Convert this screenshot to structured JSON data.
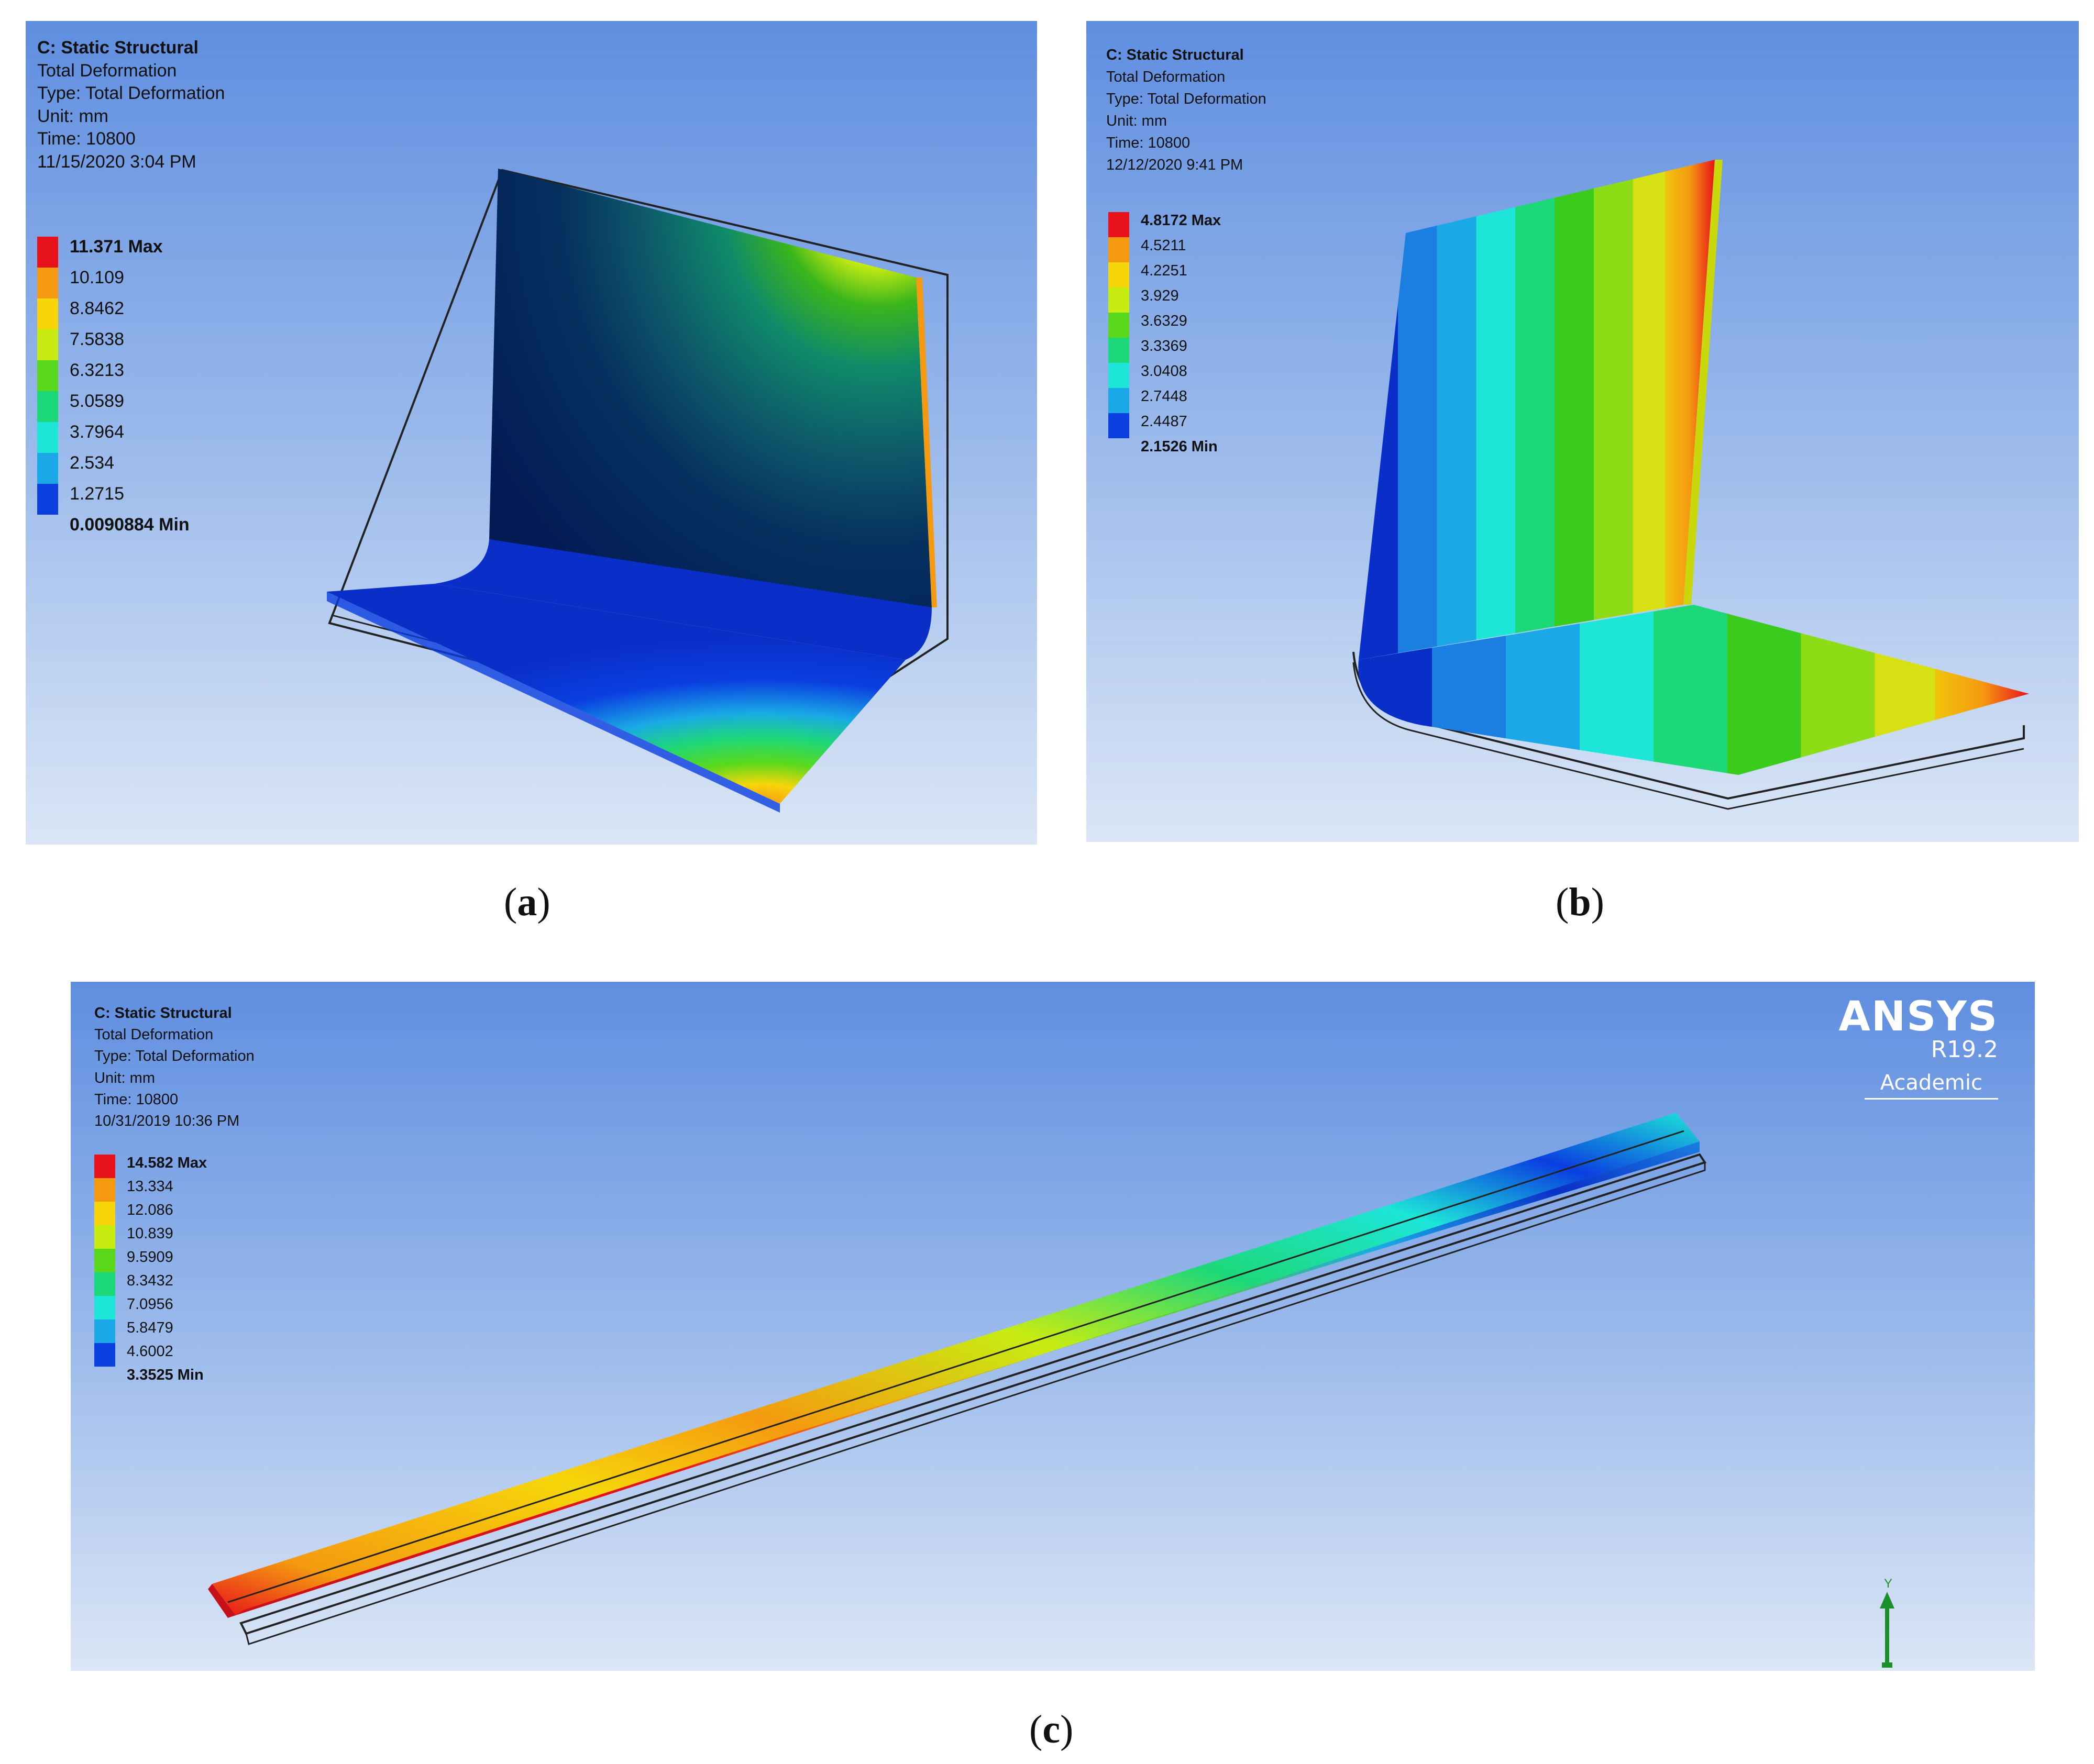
{
  "panels": [
    {
      "id": "a",
      "caption_label": "a",
      "info": [
        "C: Static Structural",
        "Total Deformation",
        "Type: Total Deformation",
        "Unit: mm",
        "Time: 10800",
        "11/15/2020 3:04 PM"
      ],
      "legend": [
        {
          "label": "11.371 Max",
          "color": "#e8121b"
        },
        {
          "label": "10.109",
          "color": "#f59a10"
        },
        {
          "label": "8.8462",
          "color": "#f6d60a"
        },
        {
          "label": "7.5838",
          "color": "#c8ec12"
        },
        {
          "label": "6.3213",
          "color": "#5ad91c"
        },
        {
          "label": "5.0589",
          "color": "#1dd879"
        },
        {
          "label": "3.7964",
          "color": "#1de6d8"
        },
        {
          "label": "2.534",
          "color": "#1aa9e6"
        },
        {
          "label": "1.2715",
          "color": "#0a3fe0"
        },
        {
          "label": "0.0090884 Min",
          "color": null
        }
      ]
    },
    {
      "id": "b",
      "caption_label": "b",
      "info": [
        "C: Static Structural",
        "Total Deformation",
        "Type: Total Deformation",
        "Unit: mm",
        "Time: 10800",
        "12/12/2020 9:41 PM"
      ],
      "legend": [
        {
          "label": "4.8172 Max",
          "color": "#e8121b"
        },
        {
          "label": "4.5211",
          "color": "#f59a10"
        },
        {
          "label": "4.2251",
          "color": "#f6d60a"
        },
        {
          "label": "3.929",
          "color": "#c8ec12"
        },
        {
          "label": "3.6329",
          "color": "#5ad91c"
        },
        {
          "label": "3.3369",
          "color": "#1dd879"
        },
        {
          "label": "3.0408",
          "color": "#1de6d8"
        },
        {
          "label": "2.7448",
          "color": "#1aa9e6"
        },
        {
          "label": "2.4487",
          "color": "#0a3fe0"
        },
        {
          "label": "2.1526 Min",
          "color": null
        }
      ]
    },
    {
      "id": "c",
      "caption_label": "c",
      "info": [
        "C: Static Structural",
        "Total Deformation",
        "Type: Total Deformation",
        "Unit: mm",
        "Time: 10800",
        "10/31/2019 10:36 PM"
      ],
      "legend": [
        {
          "label": "14.582 Max",
          "color": "#e8121b"
        },
        {
          "label": "13.334",
          "color": "#f59a10"
        },
        {
          "label": "12.086",
          "color": "#f6d60a"
        },
        {
          "label": "10.839",
          "color": "#c8ec12"
        },
        {
          "label": "9.5909",
          "color": "#5ad91c"
        },
        {
          "label": "8.3432",
          "color": "#1dd879"
        },
        {
          "label": "7.0956",
          "color": "#1de6d8"
        },
        {
          "label": "5.8479",
          "color": "#1aa9e6"
        },
        {
          "label": "4.6002",
          "color": "#0a3fe0"
        },
        {
          "label": "3.3525 Min",
          "color": null
        }
      ],
      "branding": {
        "logo": "ANSYS",
        "version": "R19.2",
        "edition": "Academic"
      },
      "triad_axis": "Y"
    }
  ],
  "captions": {
    "open": "(",
    "close": ")"
  }
}
